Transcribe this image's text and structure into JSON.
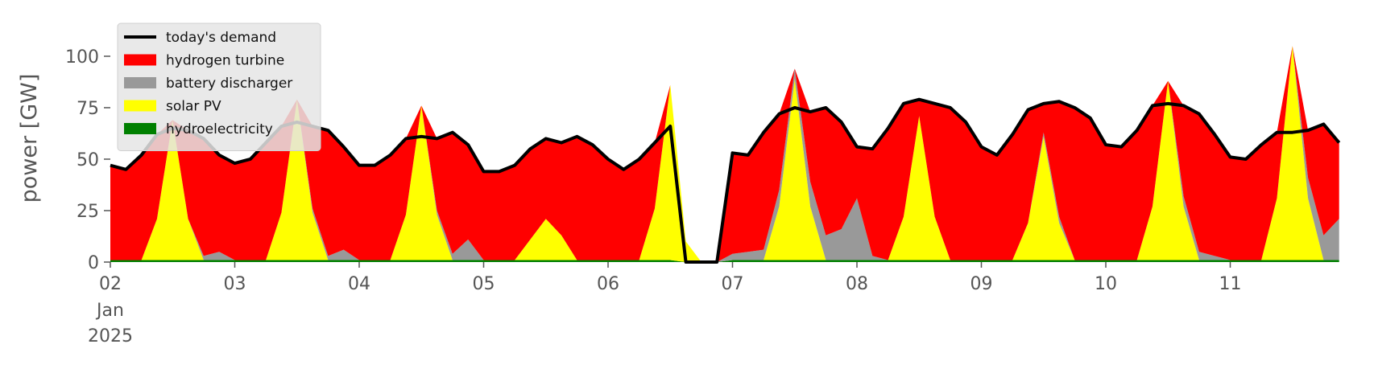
{
  "chart_data": {
    "type": "area",
    "stacked": true,
    "ylabel": "power [GW]",
    "x": [
      0,
      3,
      6,
      9,
      12,
      15,
      18,
      21,
      24,
      27,
      30,
      33,
      36,
      39,
      42,
      45,
      48,
      51,
      54,
      57,
      60,
      63,
      66,
      69,
      72,
      75,
      78,
      81,
      84,
      87,
      90,
      93,
      96,
      99,
      102,
      105,
      108,
      111,
      114,
      117,
      120,
      123,
      126,
      129,
      132,
      135,
      138,
      141,
      144,
      147,
      150,
      153,
      156,
      159,
      162,
      165,
      168,
      171,
      174,
      177,
      180,
      183,
      186,
      189,
      192,
      195,
      198,
      201,
      204,
      207,
      210,
      213,
      216,
      219,
      222,
      225,
      228,
      231,
      234,
      237
    ],
    "xlim": [
      0,
      240
    ],
    "xticks": [
      {
        "value": 0,
        "label": "02"
      },
      {
        "value": 24,
        "label": "03"
      },
      {
        "value": 48,
        "label": "04"
      },
      {
        "value": 72,
        "label": "05"
      },
      {
        "value": 96,
        "label": "06"
      },
      {
        "value": 120,
        "label": "07"
      },
      {
        "value": 144,
        "label": "08"
      },
      {
        "value": 168,
        "label": "09"
      },
      {
        "value": 192,
        "label": "10"
      },
      {
        "value": 216,
        "label": "11"
      }
    ],
    "x_sublabels": [
      "Jan",
      "2025"
    ],
    "ylim": [
      0,
      116
    ],
    "yticks": [
      0,
      25,
      50,
      75,
      100
    ],
    "grid": false,
    "legend": "upper left",
    "series": [
      {
        "name": "today's demand",
        "type": "line",
        "color": "#000000",
        "values": [
          47,
          45,
          52,
          62,
          65,
          64,
          60,
          52,
          48,
          50,
          58,
          66,
          68,
          66,
          64,
          56,
          47,
          47,
          52,
          60,
          61,
          60,
          63,
          57,
          44,
          44,
          47,
          55,
          60,
          58,
          61,
          57,
          50,
          45,
          50,
          58,
          66,
          0,
          0,
          0,
          53,
          52,
          63,
          72,
          75,
          73,
          75,
          68,
          56,
          55,
          65,
          77,
          79,
          77,
          75,
          68,
          56,
          52,
          62,
          74,
          77,
          78,
          75,
          70,
          57,
          56,
          64,
          76,
          77,
          76,
          72,
          62,
          51,
          50,
          57,
          63,
          63,
          64,
          67,
          58
        ]
      },
      {
        "name": "hydrogen turbine",
        "type": "area",
        "color": "#ff0000",
        "values": [
          46,
          44,
          51,
          41,
          0,
          43,
          57,
          47,
          47,
          49,
          57,
          42,
          0,
          40,
          61,
          50,
          46,
          46,
          51,
          37,
          0,
          35,
          59,
          46,
          43,
          43,
          46,
          44,
          39,
          45,
          60,
          56,
          49,
          44,
          49,
          32,
          0,
          0,
          0,
          0,
          49,
          47,
          57,
          37,
          0,
          34,
          62,
          52,
          25,
          52,
          64,
          55,
          8,
          55,
          74,
          67,
          55,
          51,
          61,
          55,
          14,
          56,
          74,
          69,
          56,
          55,
          63,
          49,
          0,
          44,
          67,
          59,
          50,
          49,
          56,
          32,
          0,
          23,
          54,
          37
        ]
      },
      {
        "name": "battery discharger",
        "type": "area",
        "color": "#999999",
        "values": [
          0,
          0,
          0,
          0,
          0,
          0,
          2,
          4,
          0,
          0,
          0,
          0,
          0,
          2,
          2,
          5,
          0,
          0,
          0,
          0,
          0,
          2,
          3,
          10,
          0,
          0,
          0,
          0,
          0,
          0,
          0,
          0,
          0,
          0,
          0,
          0,
          0,
          0,
          0,
          0,
          3,
          4,
          5,
          8,
          5,
          12,
          12,
          15,
          30,
          2,
          0,
          0,
          0,
          0,
          0,
          0,
          0,
          0,
          0,
          0,
          2,
          3,
          0,
          0,
          0,
          0,
          0,
          0,
          0,
          5,
          4,
          2,
          0,
          0,
          0,
          0,
          0,
          10,
          12,
          20
        ]
      },
      {
        "name": "solar PV",
        "type": "area",
        "color": "#ffff00",
        "values": [
          0,
          0,
          0,
          20,
          68,
          20,
          0,
          0,
          0,
          0,
          0,
          23,
          78,
          23,
          0,
          0,
          0,
          0,
          0,
          22,
          75,
          22,
          0,
          0,
          0,
          0,
          0,
          10,
          20,
          12,
          0,
          0,
          0,
          0,
          0,
          25,
          85,
          10,
          0,
          0,
          0,
          0,
          0,
          26,
          88,
          26,
          0,
          0,
          0,
          0,
          0,
          21,
          70,
          21,
          0,
          0,
          0,
          0,
          0,
          18,
          60,
          18,
          0,
          0,
          0,
          0,
          0,
          26,
          87,
          26,
          0,
          0,
          0,
          0,
          0,
          30,
          104,
          30,
          0,
          0
        ]
      },
      {
        "name": "hydroelectricity",
        "type": "area",
        "color": "#008000",
        "values": [
          1,
          1,
          1,
          1,
          1,
          1,
          1,
          1,
          1,
          1,
          1,
          1,
          1,
          1,
          1,
          1,
          1,
          1,
          1,
          1,
          1,
          1,
          1,
          1,
          1,
          1,
          1,
          1,
          1,
          1,
          1,
          1,
          1,
          1,
          1,
          1,
          1,
          0,
          0,
          0,
          1,
          1,
          1,
          1,
          1,
          1,
          1,
          1,
          1,
          1,
          1,
          1,
          1,
          1,
          1,
          1,
          1,
          1,
          1,
          1,
          1,
          1,
          1,
          1,
          1,
          1,
          1,
          1,
          1,
          1,
          1,
          1,
          1,
          1,
          1,
          1,
          1,
          1,
          1,
          1
        ]
      }
    ]
  }
}
